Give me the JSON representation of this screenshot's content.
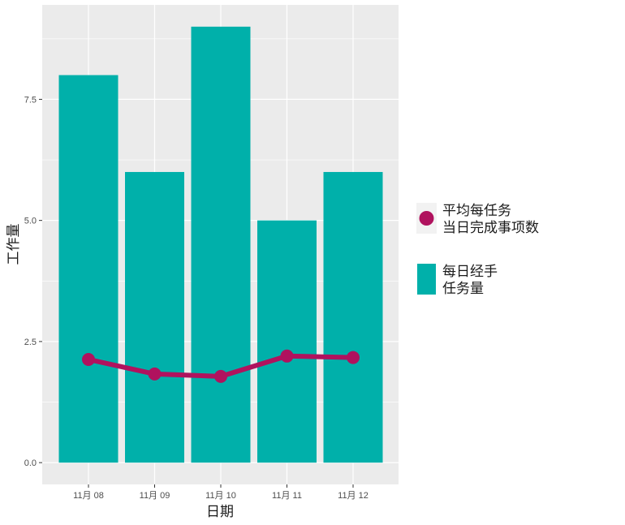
{
  "chart_data": {
    "type": "bar",
    "categories": [
      "11月 08",
      "11月 09",
      "11月 10",
      "11月 11",
      "11月 12"
    ],
    "series": [
      {
        "name": "每日经手\n任务量",
        "kind": "bar",
        "color": "#00B0AA",
        "values": [
          8,
          6,
          9,
          5,
          6
        ]
      },
      {
        "name": "平均每任务\n当日完成事项数",
        "kind": "line",
        "color": "#B0125E",
        "values": [
          2.13,
          1.83,
          1.78,
          2.2,
          2.17
        ]
      }
    ],
    "xlabel": "日期",
    "ylabel": "工作量",
    "ylim": [
      -0.45,
      9.45
    ],
    "yticks": [
      0.0,
      2.5,
      5.0,
      7.5
    ],
    "ytick_labels": [
      "0.0",
      "2.5",
      "5.0",
      "7.5"
    ],
    "grid": true,
    "legend_position": "right",
    "panel_background": "#EBEBEB"
  }
}
